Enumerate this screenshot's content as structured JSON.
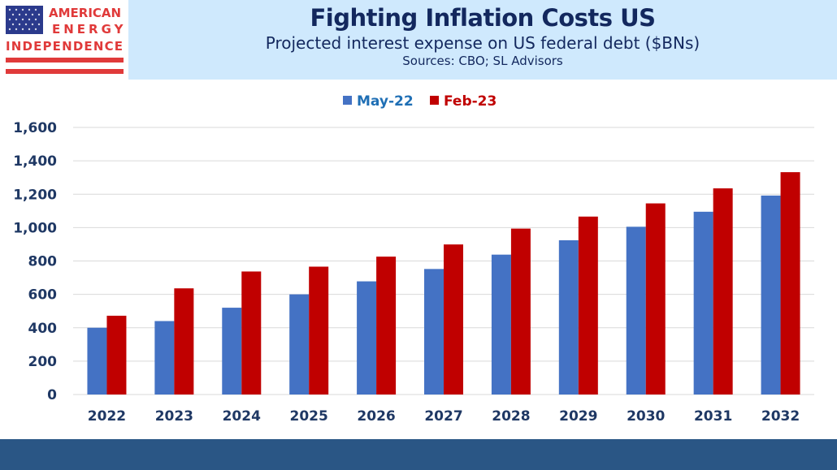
{
  "logo": {
    "text_lines": [
      "AMERICAN",
      "ENERGY",
      "INDEPENDENCE"
    ]
  },
  "header": {
    "title": "Fighting Inflation Costs US",
    "subtitle": "Projected interest expense on US federal debt ($BNs)",
    "sources": "Sources: CBO; SL Advisors"
  },
  "chart_data": {
    "type": "bar",
    "title": "Fighting Inflation Costs US",
    "categories": [
      "2022",
      "2023",
      "2024",
      "2025",
      "2026",
      "2027",
      "2028",
      "2029",
      "2030",
      "2031",
      "2032"
    ],
    "series": [
      {
        "name": "May-22",
        "color": "#4472c4",
        "values": [
          400,
          440,
          520,
          600,
          678,
          752,
          838,
          924,
          1005,
          1095,
          1192
        ]
      },
      {
        "name": "Feb-23",
        "color": "#c00000",
        "values": [
          472,
          636,
          737,
          766,
          826,
          899,
          994,
          1066,
          1145,
          1235,
          1332
        ]
      }
    ],
    "yticks": [
      "0",
      "200",
      "400",
      "600",
      "800",
      "1,000",
      "1,200",
      "1,400",
      "1,600"
    ],
    "ylim": [
      0,
      1600
    ],
    "grid": true,
    "legend": "top-center",
    "legend_text_colors": [
      "#1f6fb5",
      "#c00000"
    ]
  }
}
